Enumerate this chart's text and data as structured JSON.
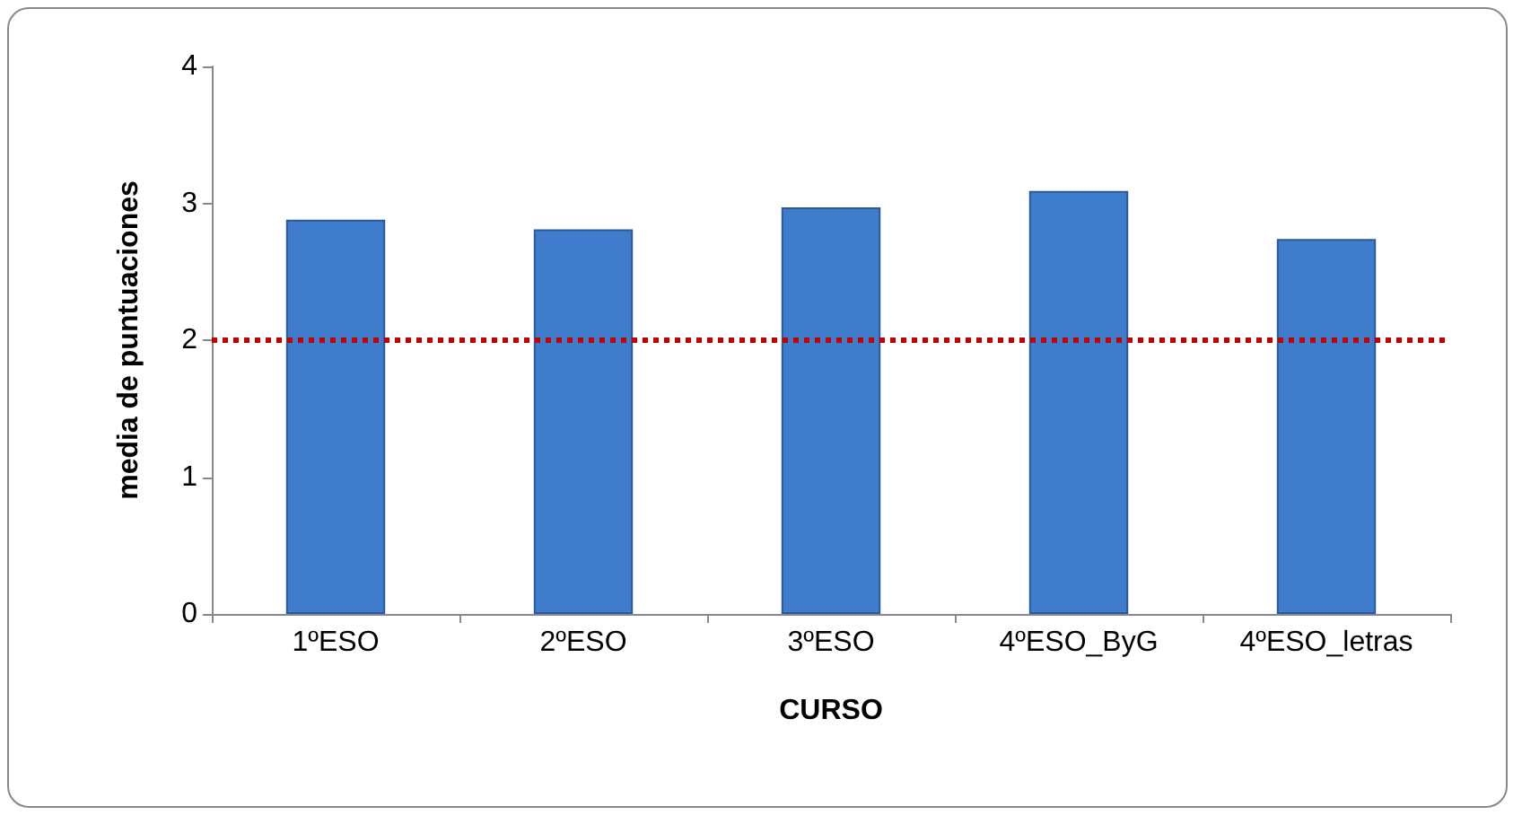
{
  "chart_data": {
    "type": "bar",
    "xlabel": "CURSO",
    "ylabel": "media de puntuaciones",
    "categories": [
      "1ºESO",
      "2ºESO",
      "3ºESO",
      "4ºESO_ByG",
      "4ºESO_letras"
    ],
    "values": [
      2.88,
      2.81,
      2.97,
      3.09,
      2.74
    ],
    "color": "#3f7ccc",
    "ylim": [
      0,
      4
    ],
    "yticks": [
      0,
      1,
      2,
      3,
      4
    ],
    "grid": false,
    "ref_lines": [
      {
        "axis": "y",
        "value": 2,
        "color": "#c00000",
        "line_style": "dotted"
      }
    ]
  }
}
